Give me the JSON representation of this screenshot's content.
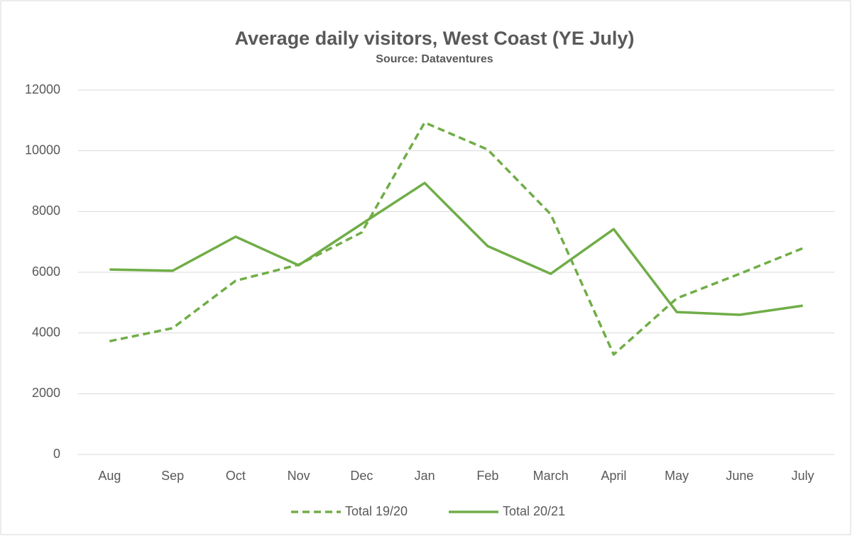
{
  "chart_data": {
    "type": "line",
    "title": "Average daily visitors, West Coast (YE July)",
    "subtitle": "Source: Dataventures",
    "categories": [
      "Aug",
      "Sep",
      "Oct",
      "Nov",
      "Dec",
      "Jan",
      "Feb",
      "March",
      "April",
      "May",
      "June",
      "July"
    ],
    "series": [
      {
        "name": "Total 19/20",
        "color": "#70ad47",
        "style": "dashed",
        "values": [
          3730,
          4160,
          5720,
          6250,
          7310,
          10930,
          10040,
          7910,
          3290,
          5140,
          5950,
          6790
        ]
      },
      {
        "name": "Total 20/21",
        "color": "#70ad47",
        "style": "solid",
        "values": [
          6090,
          6050,
          7170,
          6230,
          7590,
          8940,
          6860,
          5950,
          7420,
          4690,
          4600,
          4900
        ]
      }
    ],
    "ylim": [
      0,
      12000
    ],
    "yticks": [
      0,
      2000,
      4000,
      6000,
      8000,
      10000,
      12000
    ],
    "grid": true,
    "legend": "bottom"
  }
}
